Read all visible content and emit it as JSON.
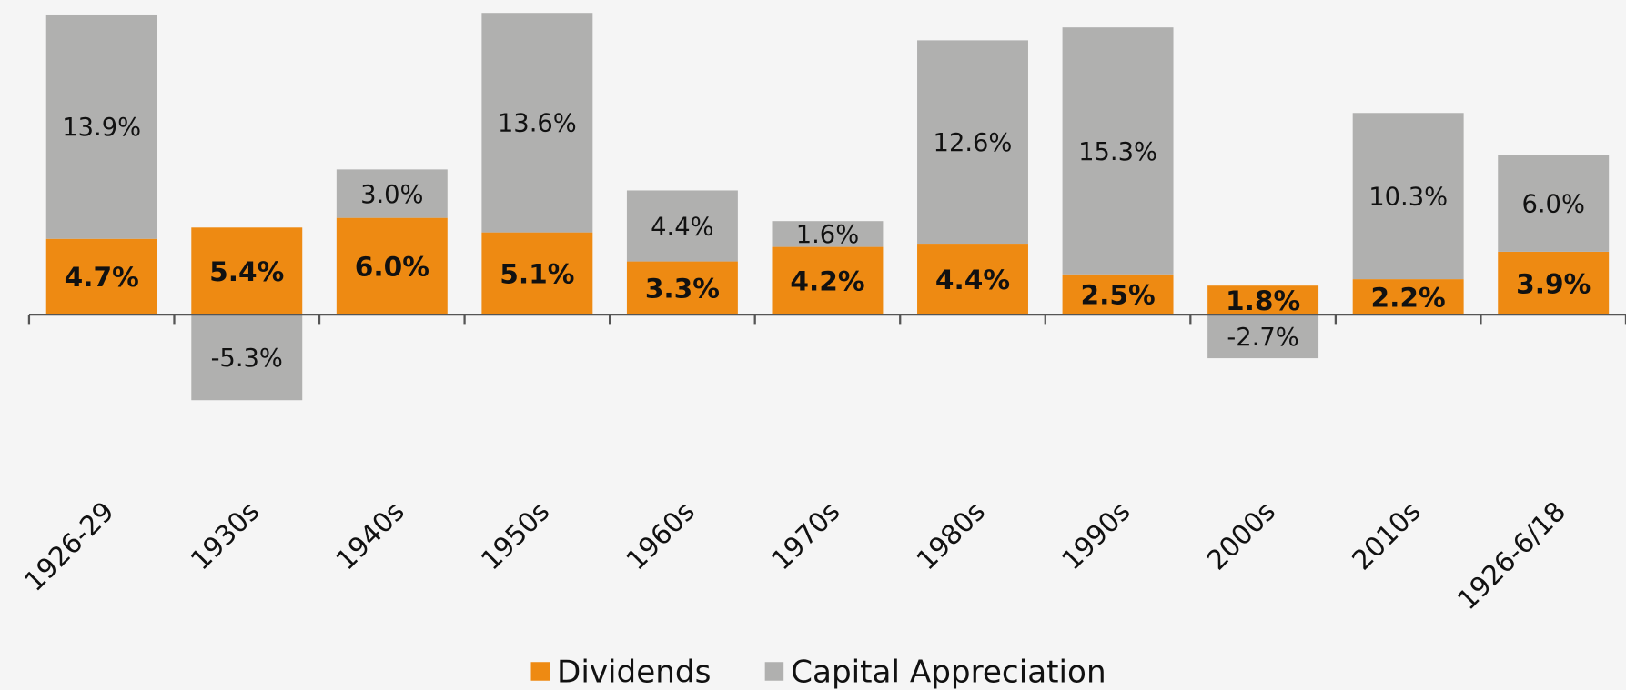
{
  "chart_data": {
    "type": "stacked_bar",
    "categories": [
      "1926-29",
      "1930s",
      "1940s",
      "1950s",
      "1960s",
      "1970s",
      "1980s",
      "1990s",
      "2000s",
      "2010s",
      "1926-6/18"
    ],
    "series": [
      {
        "name": "Dividends",
        "color": "#ee8a12",
        "values": [
          4.7,
          5.4,
          6.0,
          5.1,
          3.3,
          4.2,
          4.4,
          2.5,
          1.8,
          2.2,
          3.9
        ],
        "value_labels": [
          "4.7%",
          "5.4%",
          "6.0%",
          "5.1%",
          "3.3%",
          "4.2%",
          "4.4%",
          "2.5%",
          "1.8%",
          "2.2%",
          "3.9%"
        ]
      },
      {
        "name": "Capital Appreciation",
        "color": "#b0b0af",
        "values": [
          13.9,
          -5.3,
          3.0,
          13.6,
          4.4,
          1.6,
          12.6,
          15.3,
          -2.7,
          10.3,
          6.0
        ],
        "value_labels": [
          "13.9%",
          "-5.3%",
          "3.0%",
          "13.6%",
          "4.4%",
          "1.6%",
          "12.6%",
          "15.3%",
          "-2.7%",
          "10.3%",
          "6.0%"
        ]
      }
    ],
    "ylim": [
      -10,
      19.5
    ],
    "legend": "bottom"
  }
}
